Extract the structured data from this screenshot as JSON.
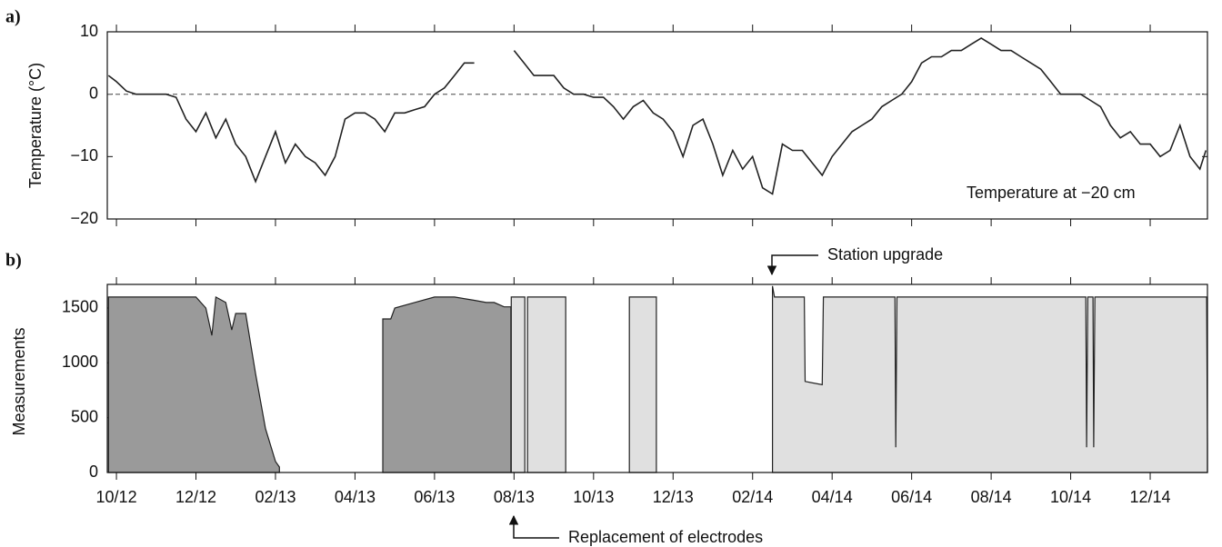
{
  "chart_data": [
    {
      "type": "line",
      "panel_label": "a)",
      "ylabel": "Temperature (°C)",
      "annotation": "Temperature at −20 cm",
      "ylim": [
        -20,
        10
      ],
      "yticks": [
        10,
        0,
        {
          "value": -10,
          "label": "−10"
        },
        {
          "value": -20,
          "label": "−20"
        }
      ],
      "xlim": [
        8.77,
        36.44
      ],
      "hline": 0,
      "series": [
        {
          "color": "#222222",
          "x": [
            8.8,
            9,
            9.25,
            9.5,
            9.75,
            10,
            10.25,
            10.5,
            10.75,
            11,
            11.25,
            11.5,
            11.75,
            12,
            12.25,
            12.5,
            12.75,
            13,
            13.25,
            13.5,
            13.75,
            14,
            14.25,
            14.5,
            14.75,
            15,
            15.25,
            15.5,
            15.75,
            16,
            16.25,
            16.5,
            16.75,
            17,
            17.25,
            17.5,
            17.75,
            18,
            18.25,
            18.5,
            18.75,
            19,
            19.25,
            19.5,
            19.75,
            20,
            20.25,
            20.5,
            20.75,
            21,
            21.25,
            21.5,
            21.75,
            22,
            22.25,
            22.5,
            22.75,
            23,
            23.25,
            23.5,
            23.75,
            24,
            24.25,
            24.5,
            24.75,
            25,
            25.25,
            25.5,
            25.75,
            26,
            26.25,
            26.5,
            26.75,
            27,
            27.25,
            27.5,
            27.75,
            28,
            28.25,
            28.5,
            28.75,
            29,
            29.25,
            29.5,
            29.75,
            30,
            30.25,
            30.5,
            30.75,
            31,
            31.25,
            31.5,
            31.75,
            32,
            32.25,
            32.5,
            32.75,
            33,
            33.25,
            33.5,
            33.75,
            34,
            34.25,
            34.5,
            34.75,
            35,
            35.25,
            35.5,
            35.75,
            36,
            36.25,
            36.4
          ],
          "values": [
            3,
            2,
            0.5,
            0,
            0,
            0,
            0,
            -0.5,
            -4,
            -6,
            -3,
            -7,
            -4,
            -8,
            -10,
            -14,
            -10,
            -6,
            -11,
            -8,
            -10,
            -11,
            -13,
            -10,
            -4,
            -3,
            -3,
            -4,
            -6,
            -3,
            -3,
            -2.5,
            -2,
            0,
            1,
            3,
            5,
            5,
            null,
            null,
            null,
            7,
            5,
            3,
            3,
            3,
            1,
            0,
            0,
            -0.5,
            -0.5,
            -2,
            -4,
            -2,
            -1,
            -3,
            -4,
            -6,
            -10,
            -5,
            -4,
            -8,
            -13,
            -9,
            -12,
            -10,
            -15,
            -16,
            -8,
            -9,
            -9,
            -11,
            -13,
            -10,
            -8,
            -6,
            -5,
            -4,
            -2,
            -1,
            0,
            2,
            5,
            6,
            6,
            7,
            7,
            8,
            9,
            8,
            7,
            7,
            6,
            5,
            4,
            2,
            0,
            0,
            0,
            -1,
            -2,
            -5,
            -7,
            -6,
            -8,
            -8,
            -10,
            -9,
            -5,
            -10,
            -12,
            -9
          ]
        }
      ]
    },
    {
      "type": "area",
      "panel_label": "b)",
      "ylabel": "Measurements",
      "ylim": [
        0,
        1715
      ],
      "yticks": [
        0,
        500,
        1000,
        1500
      ],
      "xlim": [
        8.77,
        36.44
      ],
      "xticks": [
        {
          "value": 9,
          "label": "10/12"
        },
        {
          "value": 11,
          "label": "12/12"
        },
        {
          "value": 13,
          "label": "02/13"
        },
        {
          "value": 15,
          "label": "04/13"
        },
        {
          "value": 17,
          "label": "06/13"
        },
        {
          "value": 19,
          "label": "08/13"
        },
        {
          "value": 21,
          "label": "10/13"
        },
        {
          "value": 23,
          "label": "12/13"
        },
        {
          "value": 25,
          "label": "02/14"
        },
        {
          "value": 27,
          "label": "04/14"
        },
        {
          "value": 29,
          "label": "06/14"
        },
        {
          "value": 31,
          "label": "08/14"
        },
        {
          "value": 33,
          "label": "10/14"
        },
        {
          "value": 35,
          "label": "12/14"
        }
      ],
      "annotations": [
        "Station upgrade",
        "Replacement of electrodes"
      ],
      "series": [
        {
          "color": "#9a9a9a",
          "x": [
            8.8,
            9,
            9.5,
            10,
            10.5,
            11,
            11.25,
            11.4,
            11.5,
            11.75,
            11.9,
            12,
            12.25,
            12.5,
            12.75,
            13,
            13.1,
            14,
            15.7,
            15.9,
            16,
            16.5,
            17,
            17.5,
            18,
            18.3,
            18.5,
            18.75,
            18.92
          ],
          "values": [
            1600,
            1600,
            1600,
            1600,
            1600,
            1600,
            1500,
            1250,
            1600,
            1550,
            1300,
            1450,
            1450,
            900,
            400,
            100,
            50,
            null,
            1400,
            1400,
            1500,
            1550,
            1600,
            1600,
            1570,
            1550,
            1550,
            1510,
            1510
          ]
        },
        {
          "color": "#e0e0e0",
          "x": [
            18.93,
            19.27,
            19.3,
            19.34,
            20.3,
            21,
            21.9,
            22.58,
            24,
            25.5,
            25.55,
            26.3,
            26.32,
            26.75,
            26.78,
            28.58,
            28.6,
            28.63,
            33.38,
            33.4,
            33.43,
            33.56,
            33.58,
            33.61,
            36.42,
            36.44
          ],
          "values": [
            1600,
            1600,
            null,
            1600,
            1600,
            null,
            1600,
            1600,
            null,
            1700,
            1600,
            1600,
            830,
            800,
            1600,
            1600,
            230,
            1600,
            1600,
            230,
            1600,
            1600,
            230,
            1600,
            1600,
            270
          ]
        }
      ]
    }
  ]
}
